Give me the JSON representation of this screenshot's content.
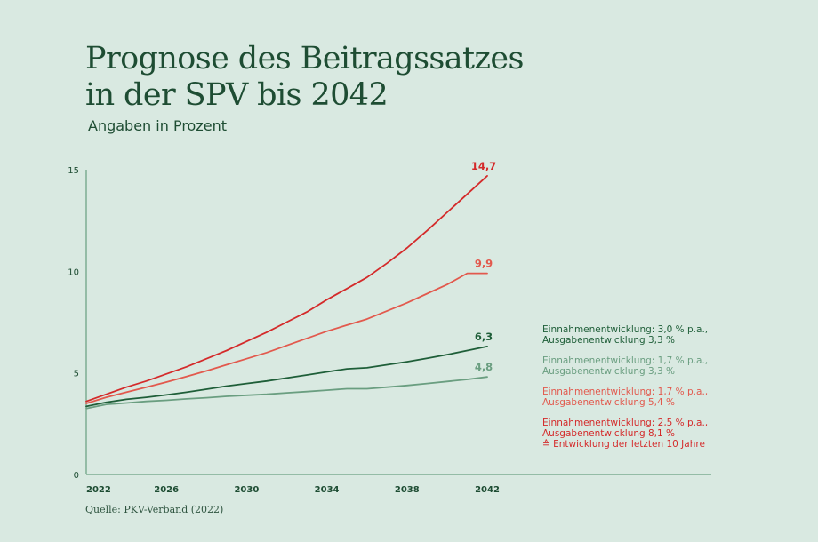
{
  "header": {
    "title_line1": "Prognose des Beitragssatzes",
    "title_line2": "in der SPV bis 2042",
    "subtitle": "Angaben in Prozent"
  },
  "source": "Quelle: PKV-Verband (2022)",
  "colors": {
    "background": "#d9e9e1",
    "dark_green": "#1e5e38",
    "light_green": "#6a9e80",
    "light_red": "#e2594d",
    "red": "#d42a2a"
  },
  "chart_data": {
    "type": "line",
    "title": "Prognose des Beitragssatzes in der SPV bis 2042",
    "subtitle": "Angaben in Prozent",
    "x": [
      2022,
      2023,
      2024,
      2025,
      2026,
      2027,
      2028,
      2029,
      2030,
      2031,
      2032,
      2033,
      2034,
      2035,
      2036,
      2037,
      2038,
      2039,
      2040,
      2041,
      2042
    ],
    "xticks": [
      "2022",
      "2026",
      "2030",
      "2034",
      "2038",
      "2042"
    ],
    "yticks": [
      "0",
      "5",
      "10",
      "15"
    ],
    "ylim": [
      0,
      15
    ],
    "grid": false,
    "legend_position": "right",
    "series": [
      {
        "name_line1": "Einnahmenentwicklung: 3,0 % p.a.,",
        "name_line2": "Ausgabenentwicklung 3,3 %",
        "color": "#1e5e38",
        "end_label": "6,3",
        "values": [
          3.35,
          3.55,
          3.7,
          3.8,
          3.92,
          4.05,
          4.2,
          4.35,
          4.48,
          4.6,
          4.75,
          4.9,
          5.05,
          5.2,
          5.25,
          5.4,
          5.55,
          5.72,
          5.9,
          6.1,
          6.3
        ]
      },
      {
        "name_line1": "Einnahmenentwicklung: 1,7 % p.a.,",
        "name_line2": "Ausgabenentwicklung 3,3 %",
        "color": "#6a9e80",
        "end_label": "4,8",
        "values": [
          3.25,
          3.45,
          3.52,
          3.6,
          3.65,
          3.72,
          3.78,
          3.85,
          3.9,
          3.95,
          4.02,
          4.08,
          4.15,
          4.22,
          4.22,
          4.3,
          4.38,
          4.48,
          4.58,
          4.68,
          4.8
        ]
      },
      {
        "name_line1": "Einnahmenentwicklung: 1,7 % p.a.,",
        "name_line2": "Ausgabenentwicklung 5,4 %",
        "color": "#e2594d",
        "end_label": "9,9",
        "values": [
          3.5,
          3.8,
          4.05,
          4.3,
          4.55,
          4.82,
          5.1,
          5.4,
          5.7,
          6.0,
          6.35,
          6.7,
          7.05,
          7.35,
          7.65,
          8.05,
          8.45,
          8.9,
          9.35,
          9.9,
          9.9
        ]
      },
      {
        "name_line1": "Einnahmenentwicklung: 2,5 % p.a.,",
        "name_line2": "Ausgabenentwicklung 8,1 %",
        "name_line3": "≙ Entwicklung der letzten 10 Jahre",
        "color": "#d42a2a",
        "end_label": "14,7",
        "values": [
          3.6,
          3.95,
          4.3,
          4.6,
          4.95,
          5.3,
          5.7,
          6.1,
          6.55,
          7.0,
          7.5,
          8.0,
          8.6,
          9.15,
          9.7,
          10.4,
          11.15,
          12.0,
          12.9,
          13.8,
          14.7
        ]
      }
    ]
  }
}
